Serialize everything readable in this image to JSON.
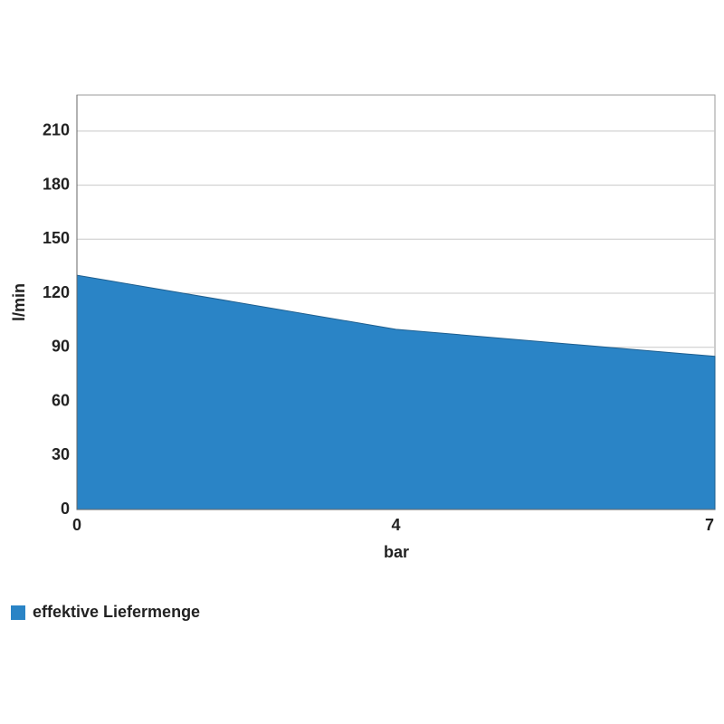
{
  "chart_data": {
    "type": "area",
    "categories": [
      "0",
      "4",
      "7"
    ],
    "series": [
      {
        "name": "effektive Liefermenge",
        "color": "#2a84c6",
        "values": [
          130,
          100,
          85
        ]
      }
    ],
    "xlabel": "bar",
    "ylabel": "l/min",
    "ylim": [
      0,
      230
    ],
    "yticks": [
      0,
      30,
      60,
      90,
      120,
      150,
      180,
      210
    ],
    "grid": true,
    "legend": "bottom-left"
  }
}
